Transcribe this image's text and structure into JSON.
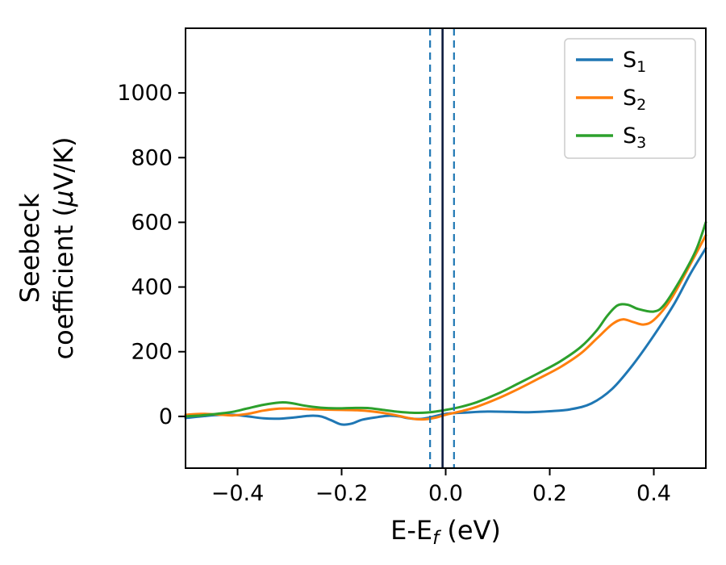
{
  "figure": {
    "background": "#ffffff"
  },
  "chart_data": {
    "type": "line",
    "title": "",
    "xlabel": {
      "pre": "E-E",
      "sub": "f",
      "post": " (eV)"
    },
    "ylabel_lines": [
      "Seebeck",
      "coefficient  (μV/K)"
    ],
    "xlim": [
      -0.5,
      0.5
    ],
    "ylim": [
      -160,
      1200
    ],
    "xticks": [
      -0.4,
      -0.2,
      0.0,
      0.2,
      0.4
    ],
    "xtick_labels": [
      "−0.4",
      "−0.2",
      "0.0",
      "0.2",
      "0.4"
    ],
    "yticks": [
      0,
      200,
      400,
      600,
      800,
      1000
    ],
    "ytick_labels": [
      "0",
      "200",
      "400",
      "600",
      "800",
      "1000"
    ],
    "grid": false,
    "legend": {
      "position": "upper right",
      "entries": [
        {
          "base": "S",
          "sub": "1"
        },
        {
          "base": "S",
          "sub": "2"
        },
        {
          "base": "S",
          "sub": "3"
        }
      ]
    },
    "vlines": [
      {
        "x": -0.03,
        "style": "dashed",
        "color": "#1f77b4",
        "width": 2.2
      },
      {
        "x": -0.006,
        "style": "solid",
        "color": "#0d1b3e",
        "width": 2.6
      },
      {
        "x": 0.016,
        "style": "dashed",
        "color": "#1f77b4",
        "width": 2.2
      }
    ],
    "series": [
      {
        "name": "S1",
        "color": "#1f77b4",
        "points": [
          [
            -0.5,
            -5
          ],
          [
            -0.47,
            0
          ],
          [
            -0.44,
            4
          ],
          [
            -0.41,
            5
          ],
          [
            -0.38,
            0
          ],
          [
            -0.35,
            -6
          ],
          [
            -0.32,
            -7
          ],
          [
            -0.29,
            -3
          ],
          [
            -0.26,
            2
          ],
          [
            -0.24,
            0
          ],
          [
            -0.22,
            -12
          ],
          [
            -0.2,
            -25
          ],
          [
            -0.18,
            -22
          ],
          [
            -0.16,
            -10
          ],
          [
            -0.13,
            -2
          ],
          [
            -0.11,
            2
          ],
          [
            -0.09,
            0
          ],
          [
            -0.07,
            -6
          ],
          [
            -0.05,
            -8
          ],
          [
            -0.03,
            -3
          ],
          [
            0.0,
            8
          ],
          [
            0.04,
            12
          ],
          [
            0.08,
            15
          ],
          [
            0.12,
            14
          ],
          [
            0.16,
            13
          ],
          [
            0.2,
            16
          ],
          [
            0.24,
            22
          ],
          [
            0.28,
            40
          ],
          [
            0.32,
            85
          ],
          [
            0.36,
            160
          ],
          [
            0.4,
            250
          ],
          [
            0.44,
            350
          ],
          [
            0.47,
            440
          ],
          [
            0.5,
            520
          ]
        ]
      },
      {
        "name": "S2",
        "color": "#ff7f0e",
        "points": [
          [
            -0.5,
            5
          ],
          [
            -0.47,
            8
          ],
          [
            -0.44,
            6
          ],
          [
            -0.41,
            3
          ],
          [
            -0.38,
            8
          ],
          [
            -0.35,
            18
          ],
          [
            -0.32,
            24
          ],
          [
            -0.29,
            24
          ],
          [
            -0.26,
            22
          ],
          [
            -0.23,
            21
          ],
          [
            -0.2,
            20
          ],
          [
            -0.17,
            19
          ],
          [
            -0.14,
            15
          ],
          [
            -0.11,
            8
          ],
          [
            -0.08,
            -2
          ],
          [
            -0.06,
            -8
          ],
          [
            -0.04,
            -9
          ],
          [
            -0.02,
            -4
          ],
          [
            0.0,
            5
          ],
          [
            0.03,
            16
          ],
          [
            0.06,
            30
          ],
          [
            0.1,
            55
          ],
          [
            0.14,
            85
          ],
          [
            0.18,
            118
          ],
          [
            0.22,
            152
          ],
          [
            0.26,
            195
          ],
          [
            0.29,
            240
          ],
          [
            0.32,
            285
          ],
          [
            0.34,
            300
          ],
          [
            0.36,
            292
          ],
          [
            0.38,
            284
          ],
          [
            0.4,
            298
          ],
          [
            0.43,
            355
          ],
          [
            0.46,
            440
          ],
          [
            0.5,
            560
          ]
        ]
      },
      {
        "name": "S3",
        "color": "#2ca02c",
        "points": [
          [
            -0.5,
            0
          ],
          [
            -0.47,
            3
          ],
          [
            -0.44,
            8
          ],
          [
            -0.41,
            14
          ],
          [
            -0.38,
            25
          ],
          [
            -0.35,
            36
          ],
          [
            -0.32,
            43
          ],
          [
            -0.3,
            42
          ],
          [
            -0.27,
            33
          ],
          [
            -0.24,
            27
          ],
          [
            -0.21,
            25
          ],
          [
            -0.18,
            26
          ],
          [
            -0.15,
            26
          ],
          [
            -0.12,
            20
          ],
          [
            -0.09,
            14
          ],
          [
            -0.06,
            11
          ],
          [
            -0.03,
            13
          ],
          [
            0.0,
            20
          ],
          [
            0.03,
            30
          ],
          [
            0.06,
            44
          ],
          [
            0.1,
            70
          ],
          [
            0.14,
            102
          ],
          [
            0.18,
            135
          ],
          [
            0.22,
            170
          ],
          [
            0.26,
            215
          ],
          [
            0.29,
            265
          ],
          [
            0.31,
            310
          ],
          [
            0.33,
            343
          ],
          [
            0.35,
            345
          ],
          [
            0.37,
            332
          ],
          [
            0.4,
            324
          ],
          [
            0.42,
            345
          ],
          [
            0.45,
            420
          ],
          [
            0.48,
            510
          ],
          [
            0.5,
            600
          ]
        ]
      }
    ]
  }
}
